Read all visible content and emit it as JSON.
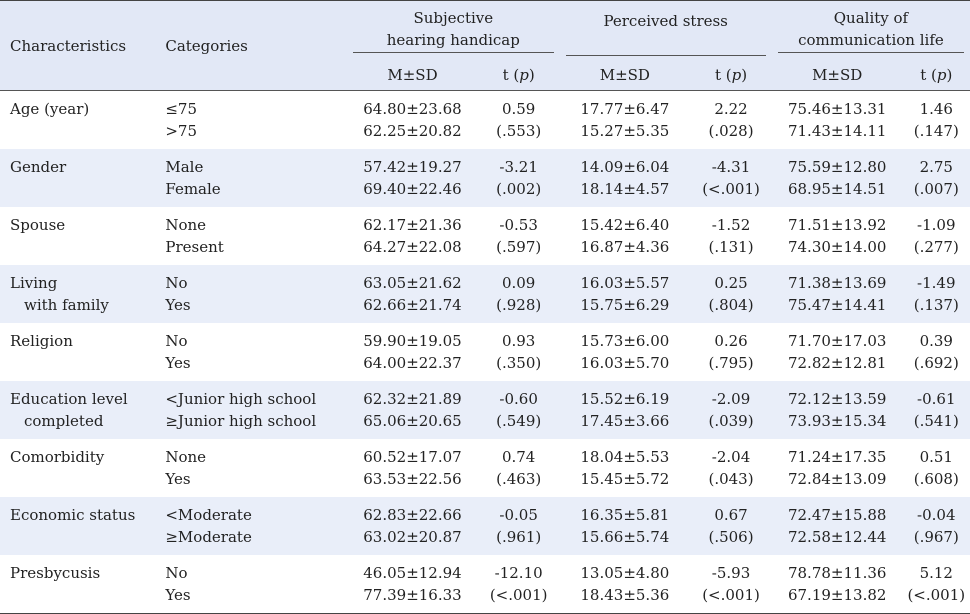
{
  "header": {
    "characteristics": "Characteristics",
    "categories": "Categories",
    "groups": [
      {
        "line1": "Subjective",
        "line2": "hearing handicap"
      },
      {
        "line1": "Perceived stress",
        "line2": ""
      },
      {
        "line1": "Quality of",
        "line2": "communication life"
      }
    ],
    "msd": "M±SD",
    "t": "t (",
    "p": "p",
    "close": ")"
  },
  "rows": [
    {
      "char": [
        "Age (year)",
        ""
      ],
      "cats": [
        "≤75",
        ">75"
      ],
      "v": [
        [
          "64.80±23.68",
          "62.25±20.82"
        ],
        [
          "0.59",
          "(.553)"
        ],
        [
          "17.77±6.47",
          "15.27±5.35"
        ],
        [
          "2.22",
          "(.028)"
        ],
        [
          "75.46±13.31",
          "71.43±14.11"
        ],
        [
          "1.46",
          "(.147)"
        ]
      ]
    },
    {
      "char": [
        "Gender",
        ""
      ],
      "cats": [
        "Male",
        "Female"
      ],
      "v": [
        [
          "57.42±19.27",
          "69.40±22.46"
        ],
        [
          "-3.21",
          "(.002)"
        ],
        [
          "14.09±6.04",
          "18.14±4.57"
        ],
        [
          "-4.31",
          "(<.001)"
        ],
        [
          "75.59±12.80",
          "68.95±14.51"
        ],
        [
          "2.75",
          "(.007)"
        ]
      ]
    },
    {
      "char": [
        "Spouse",
        ""
      ],
      "cats": [
        "None",
        "Present"
      ],
      "v": [
        [
          "62.17±21.36",
          "64.27±22.08"
        ],
        [
          "-0.53",
          "(.597)"
        ],
        [
          "15.42±6.40",
          "16.87±4.36"
        ],
        [
          "-1.52",
          "(.131)"
        ],
        [
          "71.51±13.92",
          "74.30±14.00"
        ],
        [
          "-1.09",
          "(.277)"
        ]
      ]
    },
    {
      "char": [
        "Living",
        "with family"
      ],
      "cats": [
        "No",
        "Yes"
      ],
      "v": [
        [
          "63.05±21.62",
          "62.66±21.74"
        ],
        [
          "0.09",
          "(.928)"
        ],
        [
          "16.03±5.57",
          "15.75±6.29"
        ],
        [
          "0.25",
          "(.804)"
        ],
        [
          "71.38±13.69",
          "75.47±14.41"
        ],
        [
          "-1.49",
          "(.137)"
        ]
      ]
    },
    {
      "char": [
        "Religion",
        ""
      ],
      "cats": [
        "No",
        "Yes"
      ],
      "v": [
        [
          "59.90±19.05",
          "64.00±22.37"
        ],
        [
          "0.93",
          "(.350)"
        ],
        [
          "15.73±6.00",
          "16.03±5.70"
        ],
        [
          "0.26",
          "(.795)"
        ],
        [
          "71.70±17.03",
          "72.82±12.81"
        ],
        [
          "0.39",
          "(.692)"
        ]
      ]
    },
    {
      "char": [
        "Education level",
        "completed"
      ],
      "cats": [
        "<Junior high school",
        "≥Junior high school"
      ],
      "v": [
        [
          "62.32±21.89",
          "65.06±20.65"
        ],
        [
          "-0.60",
          "(.549)"
        ],
        [
          "15.52±6.19",
          "17.45±3.66"
        ],
        [
          "-2.09",
          "(.039)"
        ],
        [
          "72.12±13.59",
          "73.93±15.34"
        ],
        [
          "-0.61",
          "(.541)"
        ]
      ]
    },
    {
      "char": [
        "Comorbidity",
        ""
      ],
      "cats": [
        "None",
        "Yes"
      ],
      "v": [
        [
          "60.52±17.07",
          "63.53±22.56"
        ],
        [
          "0.74",
          "(.463)"
        ],
        [
          "18.04±5.53",
          "15.45±5.72"
        ],
        [
          "-2.04",
          "(.043)"
        ],
        [
          "71.24±17.35",
          "72.84±13.09"
        ],
        [
          "0.51",
          "(.608)"
        ]
      ]
    },
    {
      "char": [
        "Economic status",
        ""
      ],
      "cats": [
        "<Moderate",
        "≥Moderate"
      ],
      "v": [
        [
          "62.83±22.66",
          "63.02±20.87"
        ],
        [
          "-0.05",
          "(.961)"
        ],
        [
          "16.35±5.81",
          "15.66±5.74"
        ],
        [
          "0.67",
          "(.506)"
        ],
        [
          "72.47±15.88",
          "72.58±12.44"
        ],
        [
          "-0.04",
          "(.967)"
        ]
      ]
    },
    {
      "char": [
        "Presbycusis",
        ""
      ],
      "cats": [
        "No",
        "Yes"
      ],
      "v": [
        [
          "46.05±12.94",
          "77.39±16.33"
        ],
        [
          "-12.10",
          "(<.001)"
        ],
        [
          "13.05±4.80",
          "18.43±5.36"
        ],
        [
          "-5.93",
          "(<.001)"
        ],
        [
          "78.78±11.36",
          "67.19±13.82"
        ],
        [
          "5.12",
          "(<.001)"
        ]
      ]
    }
  ]
}
